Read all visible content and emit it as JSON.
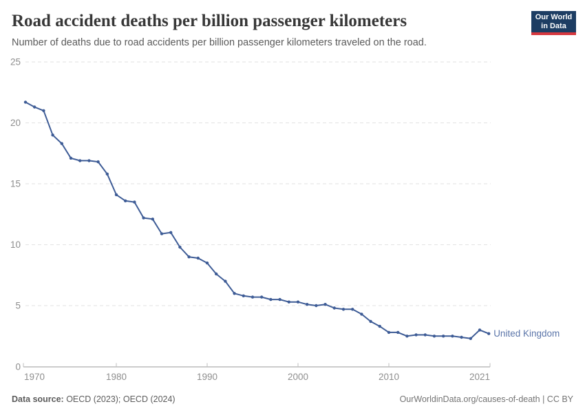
{
  "header": {
    "title": "Road accident deaths per billion passenger kilometers",
    "subtitle": "Number of deaths due to road accidents per billion passenger kilometers traveled on the road."
  },
  "logo": {
    "line1": "Our World",
    "line2": "in Data",
    "bg_color": "#1d3d63",
    "accent_color": "#d7383f"
  },
  "footer": {
    "source_label": "Data source:",
    "source_value": " OECD (2023); OECD (2024)",
    "credit": "OurWorldinData.org/causes-of-death | CC BY"
  },
  "chart_data": {
    "type": "line",
    "title": "Road accident deaths per billion passenger kilometers",
    "xlabel": "",
    "ylabel": "",
    "xlim": [
      1970,
      2021
    ],
    "ylim": [
      0,
      25
    ],
    "x_ticks": [
      1970,
      1980,
      1990,
      2000,
      2010,
      2021
    ],
    "y_ticks": [
      0,
      5,
      10,
      15,
      20,
      25
    ],
    "grid": "horizontal-dashed",
    "legend_position": "end-of-line-label",
    "x": [
      1970,
      1971,
      1972,
      1973,
      1974,
      1975,
      1976,
      1977,
      1978,
      1979,
      1980,
      1981,
      1982,
      1983,
      1984,
      1985,
      1986,
      1987,
      1988,
      1989,
      1990,
      1991,
      1992,
      1993,
      1994,
      1995,
      1996,
      1997,
      1998,
      1999,
      2000,
      2001,
      2002,
      2003,
      2004,
      2005,
      2006,
      2007,
      2008,
      2009,
      2010,
      2011,
      2012,
      2013,
      2014,
      2015,
      2016,
      2017,
      2018,
      2019,
      2020,
      2021
    ],
    "series": [
      {
        "name": "United Kingdom",
        "color": "#3E5C96",
        "label_color": "#5B75A9",
        "values": [
          21.7,
          21.3,
          21.0,
          19.0,
          18.3,
          17.1,
          16.9,
          16.9,
          16.8,
          15.8,
          14.1,
          13.6,
          13.5,
          12.2,
          12.1,
          10.9,
          11.0,
          9.8,
          9.0,
          8.9,
          8.5,
          7.6,
          7.0,
          6.0,
          5.8,
          5.7,
          5.7,
          5.5,
          5.5,
          5.3,
          5.3,
          5.1,
          5.0,
          5.1,
          4.8,
          4.7,
          4.7,
          4.3,
          3.7,
          3.3,
          2.8,
          2.8,
          2.5,
          2.6,
          2.6,
          2.5,
          2.5,
          2.5,
          2.4,
          2.3,
          3.0,
          2.7
        ]
      }
    ]
  },
  "axis_colors": {
    "gridline": "#e2e2e2",
    "axis_line": "#9a9a9a",
    "tick_mark": "#bdbdbd",
    "tick_label": "#8e8e8e"
  }
}
